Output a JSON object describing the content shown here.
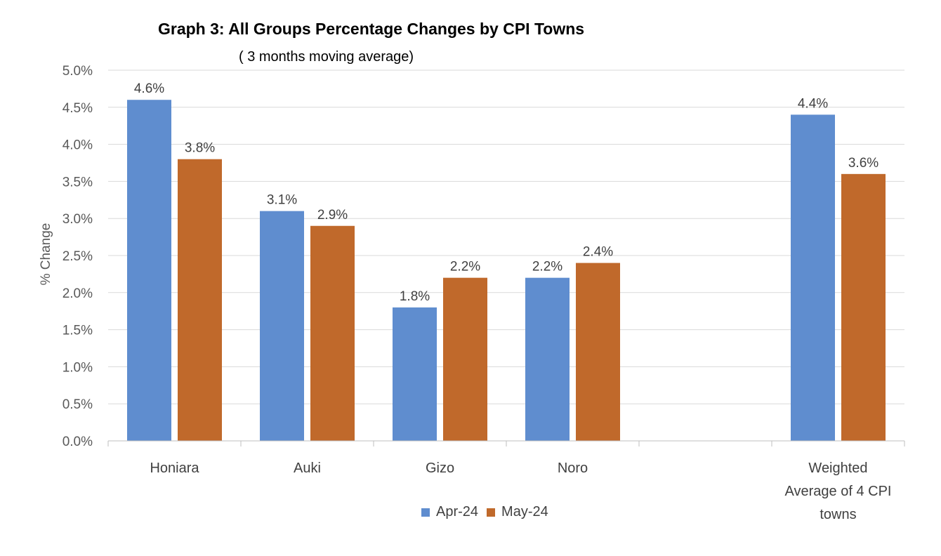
{
  "chart_data": {
    "type": "bar",
    "title": "Graph 3: All Groups Percentage Changes by CPI Towns",
    "subtitle": "( 3 months moving average)",
    "ylabel": "% Change",
    "xlabel": "",
    "categories": [
      "Honiara",
      "Auki",
      "Gizo",
      "Noro",
      "",
      "Weighted Average of 4 CPI towns"
    ],
    "category_lines": [
      [
        "Honiara"
      ],
      [
        "Auki"
      ],
      [
        "Gizo"
      ],
      [
        "Noro"
      ],
      [],
      [
        "Weighted",
        "Average of 4 CPI",
        "towns"
      ]
    ],
    "series": [
      {
        "name": "Apr-24",
        "values": [
          4.6,
          3.1,
          1.8,
          2.2,
          null,
          4.4
        ],
        "labels": [
          "4.6%",
          "3.1%",
          "1.8%",
          "2.2%",
          "",
          "4.4%"
        ],
        "color": "#5f8dcf"
      },
      {
        "name": "May-24",
        "values": [
          3.8,
          2.9,
          2.2,
          2.4,
          null,
          3.6
        ],
        "labels": [
          "3.8%",
          "2.9%",
          "2.2%",
          "2.4%",
          "",
          "3.6%"
        ],
        "color": "#c0692b"
      }
    ],
    "ylim": [
      0,
      5.0
    ],
    "yticks": [
      0,
      0.5,
      1.0,
      1.5,
      2.0,
      2.5,
      3.0,
      3.5,
      4.0,
      4.5,
      5.0
    ],
    "ytick_labels": [
      "0.0%",
      "0.5%",
      "1.0%",
      "1.5%",
      "2.0%",
      "2.5%",
      "3.0%",
      "3.5%",
      "4.0%",
      "4.5%",
      "5.0%"
    ],
    "grid": true,
    "legend_position": "bottom"
  }
}
